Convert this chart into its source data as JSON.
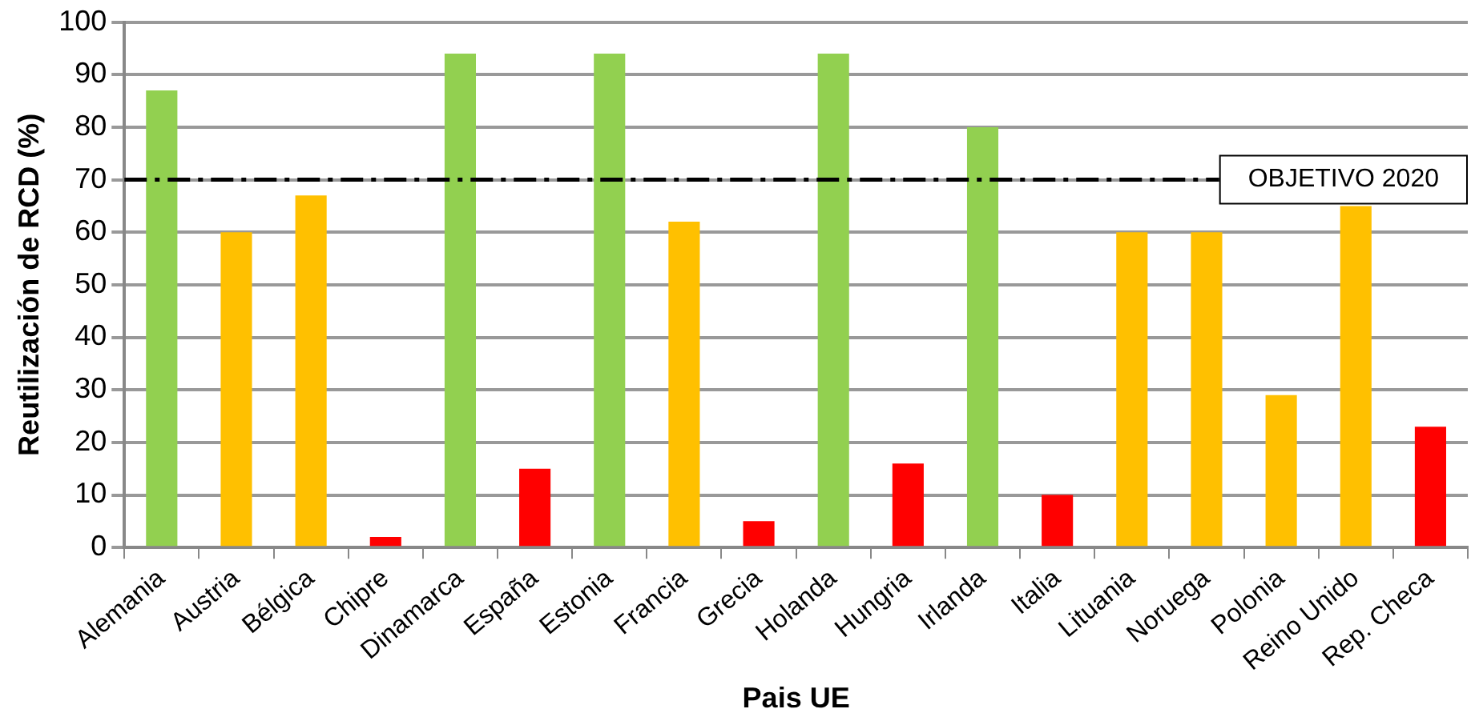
{
  "chart_data": {
    "type": "bar",
    "xlabel": "Pais UE",
    "ylabel": "Reutilización de RCD (%)",
    "categories": [
      "Alemania",
      "Austria",
      "Bélgica",
      "Chipre",
      "Dinamarca",
      "España",
      "Estonia",
      "Francia",
      "Grecia",
      "Holanda",
      "Hungria",
      "Irlanda",
      "Italia",
      "Lituania",
      "Noruega",
      "Polonia",
      "Reino Unido",
      "Rep. Checa"
    ],
    "values": [
      87,
      60,
      67,
      2,
      94,
      15,
      94,
      62,
      5,
      94,
      16,
      80,
      10,
      60,
      60,
      29,
      65,
      23
    ],
    "colors": [
      "#92d050",
      "#ffc000",
      "#ffc000",
      "#ff0000",
      "#92d050",
      "#ff0000",
      "#92d050",
      "#ffc000",
      "#ff0000",
      "#92d050",
      "#ff0000",
      "#92d050",
      "#ff0000",
      "#ffc000",
      "#ffc000",
      "#ffc000",
      "#ffc000",
      "#ff0000"
    ],
    "ylim": [
      0,
      100
    ],
    "yticks": [
      0,
      10,
      20,
      30,
      40,
      50,
      60,
      70,
      80,
      90,
      100
    ],
    "grid": "y",
    "legend": false,
    "ref_lines": [
      {
        "axis": "y",
        "value": 70,
        "label": "OBJETIVO 2020",
        "color": "#000000",
        "line_style": "dashed"
      }
    ]
  }
}
